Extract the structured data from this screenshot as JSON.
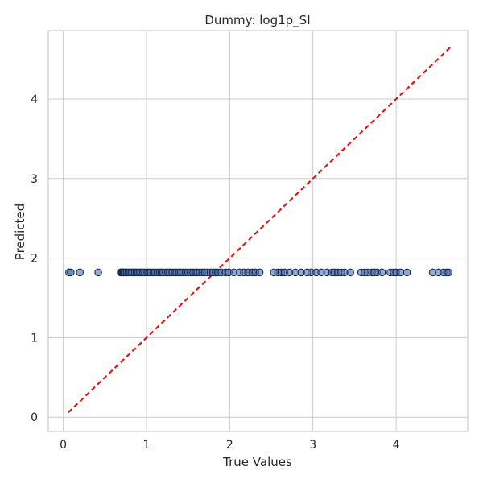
{
  "chart_data": {
    "type": "scatter",
    "title": "Dummy: log1p_SI",
    "xlabel": "True Values",
    "ylabel": "Predicted",
    "xlim": [
      -0.18,
      4.86
    ],
    "ylim": [
      -0.18,
      4.86
    ],
    "xticks": [
      0,
      1,
      2,
      3,
      4
    ],
    "yticks": [
      0,
      1,
      2,
      3,
      4
    ],
    "grid": true,
    "reference_line": {
      "style": "dashed",
      "color": "#ff0000",
      "from": [
        0.06,
        0.06
      ],
      "to": [
        4.65,
        4.65
      ]
    },
    "series": [
      {
        "x": [
          0.07,
          0.09,
          0.2,
          0.42,
          0.69,
          0.7,
          0.71,
          0.72,
          0.73,
          0.74,
          0.76,
          0.78,
          0.8,
          0.82,
          0.84,
          0.86,
          0.88,
          0.9,
          0.92,
          0.94,
          0.96,
          0.98,
          1.01,
          1.03,
          1.05,
          1.08,
          1.1,
          1.13,
          1.16,
          1.18,
          1.2,
          1.23,
          1.26,
          1.28,
          1.31,
          1.34,
          1.36,
          1.39,
          1.41,
          1.44,
          1.47,
          1.5,
          1.53,
          1.56,
          1.59,
          1.61,
          1.64,
          1.67,
          1.7,
          1.73,
          1.77,
          1.8,
          1.83,
          1.86,
          1.9,
          1.95,
          1.99,
          2.05,
          2.12,
          2.17,
          2.22,
          2.27,
          2.31,
          2.36,
          2.53,
          2.58,
          2.62,
          2.66,
          2.72,
          2.79,
          2.86,
          2.93,
          2.98,
          3.04,
          3.1,
          3.17,
          3.23,
          3.26,
          3.3,
          3.34,
          3.38,
          3.45,
          3.58,
          3.62,
          3.66,
          3.71,
          3.74,
          3.77,
          3.83,
          3.93,
          3.97,
          4.0,
          4.05,
          4.13,
          4.44,
          4.51,
          4.57,
          4.61,
          4.63
        ],
        "y": [
          1.82,
          1.82,
          1.82,
          1.82,
          1.82,
          1.82,
          1.82,
          1.82,
          1.82,
          1.82,
          1.82,
          1.82,
          1.82,
          1.82,
          1.82,
          1.82,
          1.82,
          1.82,
          1.82,
          1.82,
          1.82,
          1.82,
          1.82,
          1.82,
          1.82,
          1.82,
          1.82,
          1.82,
          1.82,
          1.82,
          1.82,
          1.82,
          1.82,
          1.82,
          1.82,
          1.82,
          1.82,
          1.82,
          1.82,
          1.82,
          1.82,
          1.82,
          1.82,
          1.82,
          1.82,
          1.82,
          1.82,
          1.82,
          1.82,
          1.82,
          1.82,
          1.82,
          1.82,
          1.82,
          1.82,
          1.82,
          1.82,
          1.82,
          1.82,
          1.82,
          1.82,
          1.82,
          1.82,
          1.82,
          1.82,
          1.82,
          1.82,
          1.82,
          1.82,
          1.82,
          1.82,
          1.82,
          1.82,
          1.82,
          1.82,
          1.82,
          1.82,
          1.82,
          1.82,
          1.82,
          1.82,
          1.82,
          1.82,
          1.82,
          1.82,
          1.82,
          1.82,
          1.82,
          1.82,
          1.82,
          1.82,
          1.82,
          1.82,
          1.82,
          1.82,
          1.82,
          1.82,
          1.82,
          1.82
        ]
      }
    ],
    "colors": {
      "points": "#4c72b0",
      "reference": "#ff0000",
      "grid": "#cccccc"
    }
  }
}
